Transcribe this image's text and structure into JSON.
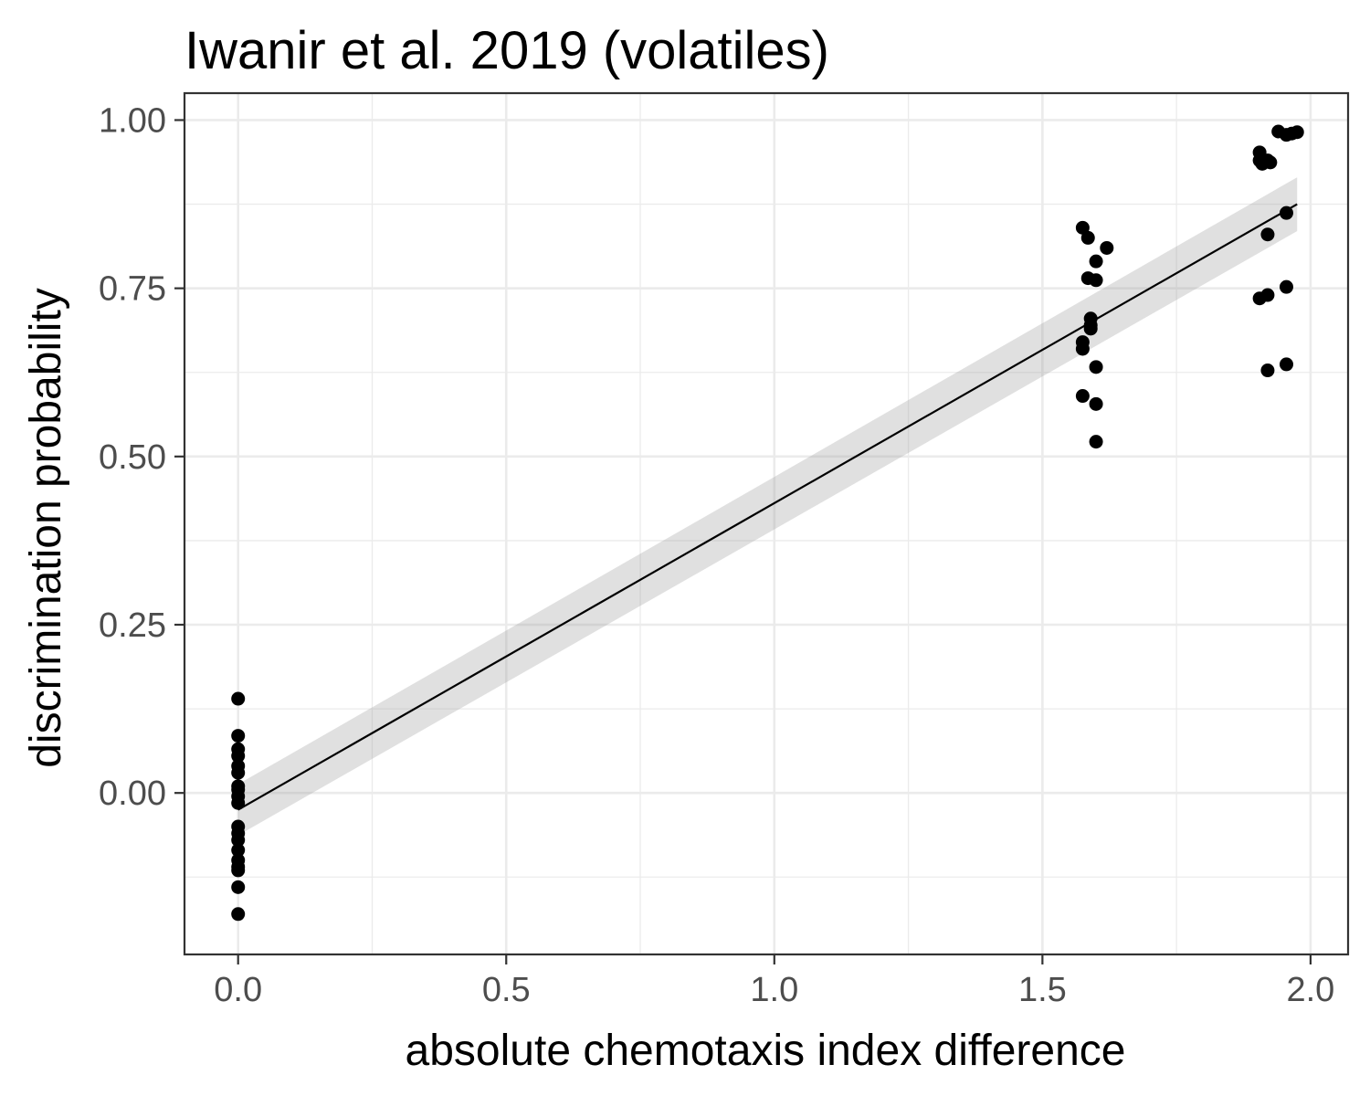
{
  "chart_data": {
    "type": "scatter",
    "title": "Iwanir et al. 2019 (volatiles)",
    "xlabel": "absolute chemotaxis index difference",
    "ylabel": "discrimination probability",
    "xlim": [
      -0.1,
      2.07
    ],
    "ylim": [
      -0.24,
      1.04
    ],
    "x_ticks": [
      0.0,
      0.5,
      1.0,
      1.5,
      2.0
    ],
    "x_tick_labels": [
      "0.0",
      "0.5",
      "1.0",
      "1.5",
      "2.0"
    ],
    "y_ticks": [
      0.0,
      0.25,
      0.5,
      0.75,
      1.0
    ],
    "y_tick_labels": [
      "0.00",
      "0.25",
      "0.50",
      "0.75",
      "1.00"
    ],
    "grid": true,
    "theme": "bw",
    "point_color": "#000000",
    "fit_color": "#000000",
    "band_color": "#999999",
    "points": [
      {
        "x": 0.0,
        "y": 0.14
      },
      {
        "x": 0.0,
        "y": 0.085
      },
      {
        "x": 0.0,
        "y": 0.065
      },
      {
        "x": 0.0,
        "y": 0.055
      },
      {
        "x": 0.0,
        "y": 0.04
      },
      {
        "x": 0.0,
        "y": 0.03
      },
      {
        "x": 0.0,
        "y": 0.01
      },
      {
        "x": 0.0,
        "y": 0.005
      },
      {
        "x": 0.0,
        "y": -0.005
      },
      {
        "x": 0.0,
        "y": -0.015
      },
      {
        "x": 0.0,
        "y": -0.05
      },
      {
        "x": 0.0,
        "y": -0.06
      },
      {
        "x": 0.0,
        "y": -0.07
      },
      {
        "x": 0.0,
        "y": -0.085
      },
      {
        "x": 0.0,
        "y": -0.1
      },
      {
        "x": 0.0,
        "y": -0.11
      },
      {
        "x": 0.0,
        "y": -0.115
      },
      {
        "x": 0.0,
        "y": -0.14
      },
      {
        "x": 0.0,
        "y": -0.18
      },
      {
        "x": 1.575,
        "y": 0.84
      },
      {
        "x": 1.585,
        "y": 0.825
      },
      {
        "x": 1.62,
        "y": 0.81
      },
      {
        "x": 1.6,
        "y": 0.79
      },
      {
        "x": 1.585,
        "y": 0.765
      },
      {
        "x": 1.6,
        "y": 0.762
      },
      {
        "x": 1.59,
        "y": 0.705
      },
      {
        "x": 1.59,
        "y": 0.695
      },
      {
        "x": 1.59,
        "y": 0.69
      },
      {
        "x": 1.575,
        "y": 0.67
      },
      {
        "x": 1.575,
        "y": 0.66
      },
      {
        "x": 1.6,
        "y": 0.633
      },
      {
        "x": 1.575,
        "y": 0.59
      },
      {
        "x": 1.6,
        "y": 0.578
      },
      {
        "x": 1.6,
        "y": 0.522
      },
      {
        "x": 1.94,
        "y": 0.983
      },
      {
        "x": 1.955,
        "y": 0.978
      },
      {
        "x": 1.965,
        "y": 0.98
      },
      {
        "x": 1.975,
        "y": 0.982
      },
      {
        "x": 1.905,
        "y": 0.952
      },
      {
        "x": 1.905,
        "y": 0.94
      },
      {
        "x": 1.91,
        "y": 0.935
      },
      {
        "x": 1.92,
        "y": 0.94
      },
      {
        "x": 1.925,
        "y": 0.937
      },
      {
        "x": 1.955,
        "y": 0.862
      },
      {
        "x": 1.92,
        "y": 0.83
      },
      {
        "x": 1.955,
        "y": 0.752
      },
      {
        "x": 1.92,
        "y": 0.74
      },
      {
        "x": 1.905,
        "y": 0.735
      },
      {
        "x": 1.955,
        "y": 0.637
      },
      {
        "x": 1.92,
        "y": 0.628
      }
    ],
    "fit": {
      "x": [
        0.0,
        1.975
      ],
      "y": [
        -0.025,
        0.875
      ],
      "ci_lower": [
        -0.063,
        0.835
      ],
      "ci_upper": [
        0.013,
        0.915
      ]
    }
  }
}
